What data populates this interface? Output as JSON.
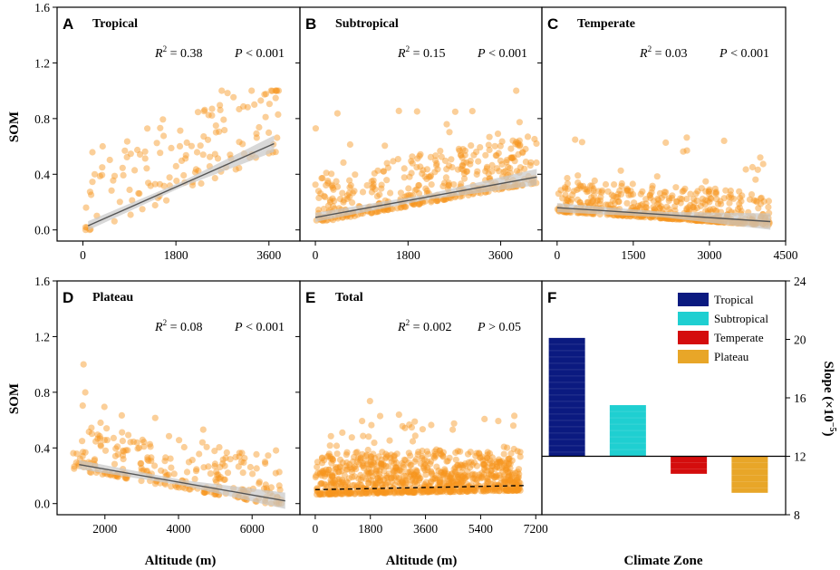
{
  "y_axis_label": "SOM",
  "x_axis_label": "Altitude (m)",
  "f_x_axis_label": "Climate Zone",
  "f_y_axis_label": "Slope (×10",
  "f_y_axis_label_exp": "−5",
  "f_y_axis_label_close": ")",
  "colors": {
    "point": "#f7941d",
    "fit": "#555555",
    "band": "#c8c8c8"
  },
  "chart_data": [
    {
      "id": "A",
      "letter": "A",
      "title": "Tropical",
      "type": "scatter",
      "r2_label": "R",
      "r2_value": " = 0.38",
      "p_label": "P",
      "p_value": " < 0.001",
      "xlim": [
        -500,
        4200
      ],
      "ylim": [
        -0.08,
        1.6
      ],
      "xticks": [
        "0",
        "1800",
        "3600"
      ],
      "xtick_values": [
        0,
        1800,
        3600
      ],
      "yticks": [
        "0.0",
        "0.4",
        "0.8",
        "1.2",
        "1.6"
      ],
      "ytick_values": [
        0,
        0.4,
        0.8,
        1.2,
        1.6
      ],
      "fit": {
        "x0": 100,
        "y0": 0.03,
        "x1": 3700,
        "y1": 0.62,
        "style": "solid",
        "band": true
      },
      "cloud": {
        "n": 140,
        "xmin": 50,
        "xmax": 3800,
        "ymax": 1.0,
        "spread": 0.2,
        "skew": 1.3,
        "seed": 11
      }
    },
    {
      "id": "B",
      "letter": "B",
      "title": "Subtropical",
      "type": "scatter",
      "r2_label": "R",
      "r2_value": " = 0.15",
      "p_label": "P",
      "p_value": " < 0.001",
      "xlim": [
        -300,
        4400
      ],
      "ylim": [
        -0.08,
        1.6
      ],
      "xticks": [
        "0",
        "1800",
        "3600"
      ],
      "xtick_values": [
        0,
        1800,
        3600
      ],
      "yticks": [],
      "ytick_values": [
        0,
        0.4,
        0.8,
        1.2,
        1.6
      ],
      "fit": {
        "x0": 0,
        "y0": 0.09,
        "x1": 4300,
        "y1": 0.38,
        "style": "solid",
        "band": true
      },
      "cloud": {
        "n": 420,
        "xmin": 0,
        "xmax": 4300,
        "ymax": 1.0,
        "spread": 0.12,
        "skew": 2.0,
        "seed": 23
      }
    },
    {
      "id": "C",
      "letter": "C",
      "title": "Temperate",
      "type": "scatter",
      "r2_label": "R",
      "r2_value": " = 0.03",
      "p_label": "P",
      "p_value": " < 0.001",
      "xlim": [
        -300,
        4500
      ],
      "ylim": [
        -0.08,
        1.6
      ],
      "xticks": [
        "0",
        "1500",
        "3000",
        "4500"
      ],
      "xtick_values": [
        0,
        1500,
        3000,
        4500
      ],
      "yticks": [],
      "ytick_values": [
        0,
        0.4,
        0.8,
        1.2,
        1.6
      ],
      "fit": {
        "x0": 0,
        "y0": 0.16,
        "x1": 4200,
        "y1": 0.06,
        "style": "solid",
        "band": true
      },
      "cloud": {
        "n": 520,
        "xmin": 0,
        "xmax": 4200,
        "ymax": 1.0,
        "spread": 0.08,
        "skew": 2.6,
        "seed": 37
      }
    },
    {
      "id": "D",
      "letter": "D",
      "title": "Plateau",
      "type": "scatter",
      "r2_label": "R",
      "r2_value": " = 0.08",
      "p_label": "P",
      "p_value": " < 0.001",
      "xlim": [
        700,
        7300
      ],
      "ylim": [
        -0.08,
        1.6
      ],
      "xticks": [
        "2000",
        "4000",
        "6000"
      ],
      "xtick_values": [
        2000,
        4000,
        6000
      ],
      "yticks": [
        "0.0",
        "0.4",
        "0.8",
        "1.2",
        "1.6"
      ],
      "ytick_values": [
        0,
        0.4,
        0.8,
        1.2,
        1.6
      ],
      "fit": {
        "x0": 1300,
        "y0": 0.28,
        "x1": 6900,
        "y1": 0.02,
        "style": "solid",
        "band": true
      },
      "cloud": {
        "n": 260,
        "xmin": 1100,
        "xmax": 6800,
        "ymax": 1.0,
        "spread": 0.12,
        "skew": 2.0,
        "seed": 53
      }
    },
    {
      "id": "E",
      "letter": "E",
      "title": "Total",
      "type": "scatter",
      "r2_label": "R",
      "r2_value": " = 0.002",
      "p_label": "P",
      "p_value": " > 0.05",
      "xlim": [
        -500,
        7400
      ],
      "ylim": [
        -0.08,
        1.6
      ],
      "xticks": [
        "0",
        "1800",
        "3600",
        "5400",
        "7200"
      ],
      "xtick_values": [
        0,
        1800,
        3600,
        5400,
        7200
      ],
      "yticks": [],
      "ytick_values": [
        0,
        0.4,
        0.8,
        1.2,
        1.6
      ],
      "fit": {
        "x0": 0,
        "y0": 0.1,
        "x1": 6900,
        "y1": 0.13,
        "style": "dashed",
        "band": false
      },
      "cloud": {
        "n": 900,
        "xmin": 0,
        "xmax": 6700,
        "ymax": 1.0,
        "spread": 0.1,
        "skew": 2.2,
        "seed": 71
      }
    },
    {
      "id": "F",
      "letter": "F",
      "type": "bar",
      "categories": [
        "Tropical",
        "Subtropical",
        "Temperate",
        "Plateau"
      ],
      "values": [
        20.1,
        15.5,
        10.8,
        9.5
      ],
      "baseline": 12,
      "colors": [
        "#0b1a80",
        "#1fcfd1",
        "#d40d0d",
        "#e8a628"
      ],
      "ylim": [
        8,
        24
      ],
      "yticks": [
        "8",
        "12",
        "16",
        "20",
        "24"
      ],
      "ytick_values": [
        8,
        12,
        16,
        20,
        24
      ],
      "legend": [
        "Tropical",
        "Subtropical",
        "Temperate",
        "Plateau"
      ]
    }
  ]
}
